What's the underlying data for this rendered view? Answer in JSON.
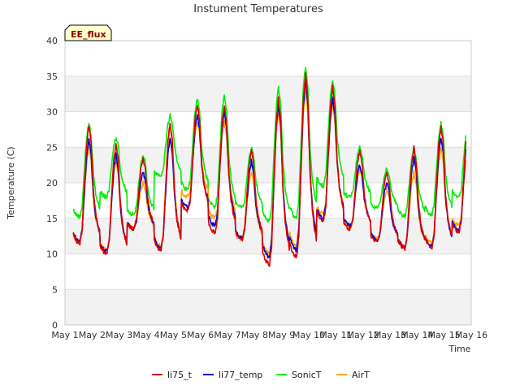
{
  "chart_data": {
    "type": "line",
    "title": "Instument Temperatures",
    "xlabel": "Time",
    "ylabel": "Temperature (C)",
    "badge": "EE_flux",
    "xlim": [
      1,
      16
    ],
    "ylim": [
      0,
      40
    ],
    "x_tick_labels": [
      "May 1",
      "May 2",
      "May 3",
      "May 4",
      "May 5",
      "May 6",
      "May 7",
      "May 8",
      "May 9",
      "May 10",
      "May 11",
      "May 12",
      "May 13",
      "May 14",
      "May 15",
      "May 16"
    ],
    "y_ticks": [
      0,
      5,
      10,
      15,
      20,
      25,
      30,
      35,
      40
    ],
    "grid": true,
    "legend_position": "bottom",
    "day_profile": {
      "hours": [
        0,
        3,
        6,
        8,
        10,
        12,
        14,
        16,
        18,
        20,
        22,
        24
      ],
      "weights": [
        0.08,
        0.02,
        0.0,
        0.12,
        0.5,
        0.85,
        1.0,
        0.85,
        0.45,
        0.25,
        0.15,
        0.08
      ]
    },
    "series": [
      {
        "name": "li75_t",
        "color": "#dd0000",
        "daily_min": [
          11.5,
          10.0,
          13.5,
          10.5,
          16.0,
          13.0,
          12.0,
          8.5,
          9.5,
          14.5,
          13.5,
          11.8,
          10.8,
          10.8,
          13.0
        ],
        "daily_max": [
          28.0,
          25.5,
          23.5,
          28.5,
          31.0,
          31.0,
          24.5,
          32.0,
          35.5,
          33.5,
          24.5,
          21.5,
          25.0,
          28.0,
          28.0
        ]
      },
      {
        "name": "li77_temp",
        "color": "#0000dd",
        "daily_min": [
          11.8,
          10.3,
          13.6,
          10.8,
          16.5,
          14.0,
          12.2,
          9.5,
          10.5,
          15.0,
          14.0,
          12.0,
          11.0,
          11.0,
          13.3
        ],
        "daily_max": [
          26.0,
          24.0,
          21.5,
          26.5,
          29.5,
          30.0,
          23.0,
          31.0,
          34.5,
          32.0,
          22.5,
          20.0,
          23.5,
          26.5,
          26.5
        ]
      },
      {
        "name": "SonicT",
        "color": "#00ee00",
        "daily_min": [
          15.2,
          18.0,
          15.5,
          21.0,
          19.0,
          16.5,
          16.5,
          14.5,
          15.0,
          19.5,
          18.0,
          16.5,
          15.3,
          15.5,
          18.0
        ],
        "daily_max": [
          28.5,
          26.5,
          24.0,
          29.5,
          32.0,
          32.5,
          25.0,
          33.5,
          36.5,
          34.5,
          25.0,
          22.0,
          25.0,
          28.5,
          28.5
        ]
      },
      {
        "name": "AirT",
        "color": "#ffa500",
        "daily_min": [
          11.5,
          10.5,
          13.5,
          11.0,
          18.0,
          15.0,
          12.0,
          10.0,
          11.0,
          15.5,
          13.8,
          12.2,
          11.0,
          11.5,
          14.0
        ],
        "daily_max": [
          25.0,
          23.0,
          20.0,
          28.0,
          28.5,
          28.5,
          21.5,
          30.0,
          33.0,
          31.0,
          22.0,
          19.0,
          21.5,
          25.0,
          25.0
        ]
      }
    ]
  }
}
